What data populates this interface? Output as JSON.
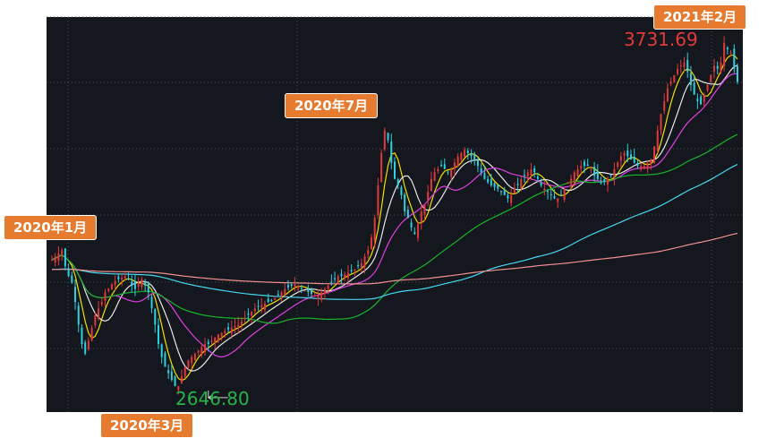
{
  "chart_data": {
    "type": "line",
    "time_range": [
      "2020-01",
      "2021-02"
    ],
    "yrange": [
      2580,
      3800
    ],
    "colors": {
      "background": "#14171d",
      "grid": "#4a505a",
      "up": "#e03a3a",
      "down": "#2fd0e0",
      "high_label": "#e03a3a",
      "low_label": "#27b24a",
      "callout": "#e67a2e"
    },
    "annotations": [
      {
        "id": "jan",
        "text": "2020年1月"
      },
      {
        "id": "mar",
        "text": "2020年3月"
      },
      {
        "id": "jul",
        "text": "2020年7月"
      },
      {
        "id": "feb",
        "text": "2021年2月"
      }
    ],
    "high": {
      "value": "3731.69",
      "x": 313,
      "y": 3731.69
    },
    "low": {
      "value": "2646.80",
      "x": 47,
      "y": 2646.8
    },
    "close": [
      3050,
      3060,
      3070,
      3080,
      3030,
      3000,
      2980,
      2920,
      2850,
      2790,
      2760,
      2800,
      2840,
      2880,
      2900,
      2920,
      2950,
      2960,
      2975,
      2985,
      2990,
      2995,
      3000,
      2990,
      2970,
      2960,
      2980,
      2990,
      2970,
      2950,
      2900,
      2850,
      2790,
      2750,
      2720,
      2700,
      2680,
      2660,
      2660,
      2690,
      2720,
      2740,
      2750,
      2760,
      2770,
      2780,
      2790,
      2790,
      2800,
      2810,
      2820,
      2825,
      2830,
      2835,
      2840,
      2845,
      2850,
      2860,
      2870,
      2880,
      2890,
      2900,
      2905,
      2910,
      2915,
      2920,
      2925,
      2930,
      2940,
      2950,
      2960,
      2965,
      2970,
      2975,
      2970,
      2960,
      2955,
      2950,
      2945,
      2940,
      2940,
      2950,
      2960,
      2970,
      2980,
      2990,
      3000,
      3000,
      3005,
      3010,
      3015,
      3020,
      3030,
      3040,
      3060,
      3080,
      3120,
      3180,
      3280,
      3380,
      3450,
      3420,
      3350,
      3300,
      3280,
      3250,
      3200,
      3180,
      3150,
      3130,
      3160,
      3200,
      3220,
      3260,
      3300,
      3320,
      3330,
      3340,
      3330,
      3320,
      3330,
      3350,
      3370,
      3380,
      3390,
      3380,
      3370,
      3360,
      3340,
      3320,
      3300,
      3290,
      3280,
      3275,
      3270,
      3260,
      3250,
      3240,
      3250,
      3270,
      3280,
      3300,
      3310,
      3320,
      3330,
      3320,
      3300,
      3280,
      3270,
      3260,
      3250,
      3240,
      3240,
      3250,
      3270,
      3290,
      3300,
      3320,
      3330,
      3340,
      3340,
      3340,
      3330,
      3310,
      3300,
      3290,
      3290,
      3300,
      3310,
      3330,
      3350,
      3370,
      3380,
      3370,
      3360,
      3350,
      3340,
      3340,
      3340,
      3350,
      3360,
      3400,
      3450,
      3500,
      3540,
      3580,
      3600,
      3620,
      3640,
      3650,
      3660,
      3630,
      3590,
      3560,
      3540,
      3530,
      3560,
      3590,
      3620,
      3650,
      3640,
      3660,
      3720,
      3700,
      3690,
      3640,
      3600
    ],
    "ma_series": [
      {
        "window": 5,
        "color": "#f2e000"
      },
      {
        "window": 10,
        "color": "#e8e8e8"
      },
      {
        "window": 20,
        "color": "#e040e0"
      },
      {
        "window": 60,
        "color": "#19b42c"
      },
      {
        "window": 120,
        "color": "#48d8f0"
      },
      {
        "window": 250,
        "color": "#f09090"
      }
    ]
  }
}
